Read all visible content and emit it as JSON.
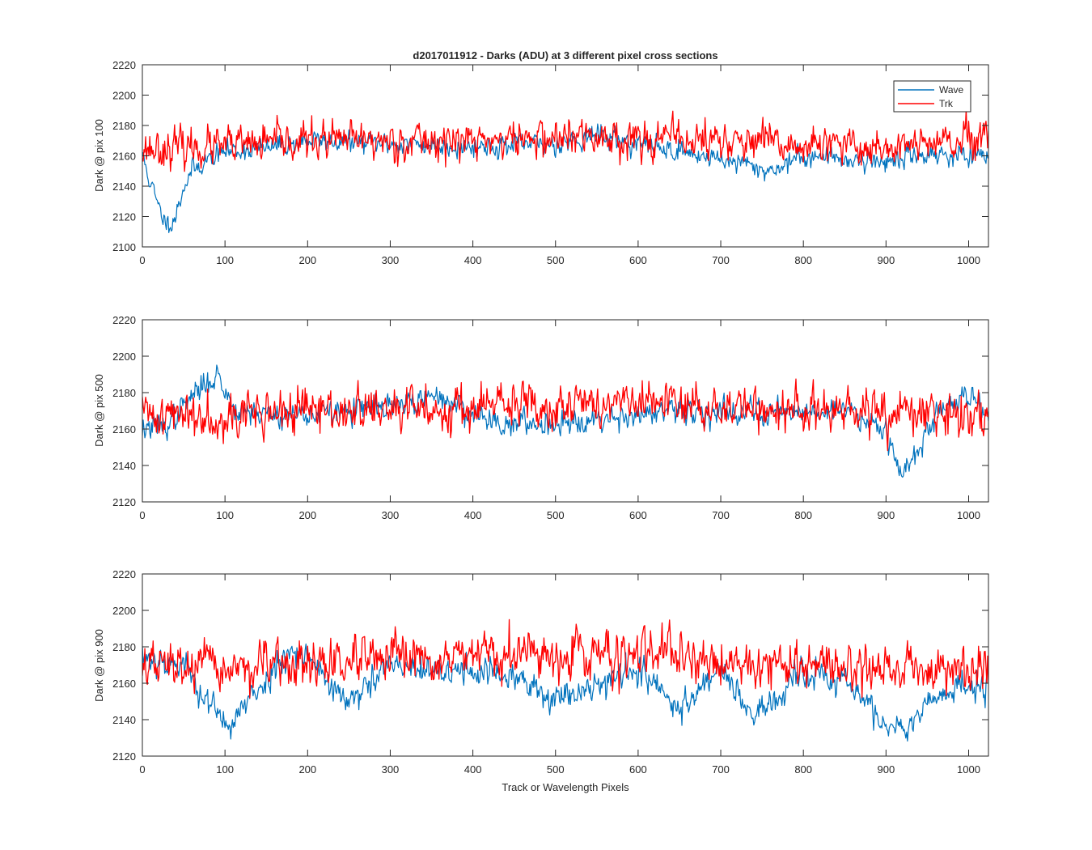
{
  "figure": {
    "title": "d2017011912 - Darks (ADU) at 3 different pixel cross sections",
    "xlabel": "Track or Wavelength Pixels"
  },
  "colors": {
    "wave": "#0072BD",
    "trk": "#FF0000",
    "axes": "#262626"
  },
  "legend": {
    "placement": "top-right of first panel",
    "items": [
      "Wave",
      "Trk"
    ]
  },
  "chart_data": [
    {
      "type": "line",
      "ylabel": "Dark @ pix 100",
      "xlim": [
        0,
        1024
      ],
      "ylim": [
        2100,
        2220
      ],
      "xticks": [
        0,
        100,
        200,
        300,
        400,
        500,
        600,
        700,
        800,
        900,
        1000
      ],
      "yticks": [
        2100,
        2120,
        2140,
        2160,
        2180,
        2200,
        2220
      ],
      "series": [
        {
          "name": "Wave",
          "color": "#0072BD",
          "noise": 5,
          "seed": 11,
          "trend": [
            [
              0,
              2160
            ],
            [
              10,
              2142
            ],
            [
              20,
              2125
            ],
            [
              30,
              2115
            ],
            [
              40,
              2120
            ],
            [
              50,
              2140
            ],
            [
              60,
              2150
            ],
            [
              80,
              2158
            ],
            [
              100,
              2163
            ],
            [
              150,
              2165
            ],
            [
              200,
              2170
            ],
            [
              300,
              2168
            ],
            [
              400,
              2166
            ],
            [
              500,
              2168
            ],
            [
              550,
              2174
            ],
            [
              600,
              2168
            ],
            [
              700,
              2158
            ],
            [
              760,
              2150
            ],
            [
              800,
              2160
            ],
            [
              900,
              2156
            ],
            [
              950,
              2162
            ],
            [
              1024,
              2158
            ]
          ]
        },
        {
          "name": "Trk",
          "color": "#FF0000",
          "noise": 9,
          "seed": 23,
          "trend": [
            [
              0,
              2165
            ],
            [
              100,
              2166
            ],
            [
              200,
              2170
            ],
            [
              300,
              2170
            ],
            [
              400,
              2170
            ],
            [
              500,
              2172
            ],
            [
              600,
              2172
            ],
            [
              700,
              2170
            ],
            [
              800,
              2166
            ],
            [
              900,
              2166
            ],
            [
              1024,
              2170
            ]
          ]
        }
      ]
    },
    {
      "type": "line",
      "ylabel": "Dark @ pix 500",
      "xlim": [
        0,
        1024
      ],
      "ylim": [
        2120,
        2220
      ],
      "xticks": [
        0,
        100,
        200,
        300,
        400,
        500,
        600,
        700,
        800,
        900,
        1000
      ],
      "yticks": [
        2120,
        2140,
        2160,
        2180,
        2200,
        2220
      ],
      "series": [
        {
          "name": "Wave",
          "color": "#0072BD",
          "noise": 5,
          "seed": 37,
          "trend": [
            [
              0,
              2160
            ],
            [
              30,
              2162
            ],
            [
              60,
              2178
            ],
            [
              90,
              2190
            ],
            [
              110,
              2172
            ],
            [
              150,
              2168
            ],
            [
              200,
              2168
            ],
            [
              300,
              2172
            ],
            [
              360,
              2178
            ],
            [
              400,
              2168
            ],
            [
              450,
              2162
            ],
            [
              500,
              2164
            ],
            [
              600,
              2168
            ],
            [
              700,
              2170
            ],
            [
              800,
              2170
            ],
            [
              860,
              2170
            ],
            [
              900,
              2160
            ],
            [
              920,
              2136
            ],
            [
              940,
              2148
            ],
            [
              960,
              2168
            ],
            [
              1000,
              2180
            ],
            [
              1024,
              2170
            ]
          ]
        },
        {
          "name": "Trk",
          "color": "#FF0000",
          "noise": 9,
          "seed": 41,
          "trend": [
            [
              0,
              2168
            ],
            [
              100,
              2168
            ],
            [
              200,
              2170
            ],
            [
              300,
              2170
            ],
            [
              400,
              2172
            ],
            [
              500,
              2174
            ],
            [
              600,
              2174
            ],
            [
              700,
              2172
            ],
            [
              800,
              2170
            ],
            [
              900,
              2168
            ],
            [
              1024,
              2168
            ]
          ]
        }
      ]
    },
    {
      "type": "line",
      "ylabel": "Dark @ pix 900",
      "xlim": [
        0,
        1024
      ],
      "ylim": [
        2120,
        2220
      ],
      "xticks": [
        0,
        100,
        200,
        300,
        400,
        500,
        600,
        700,
        800,
        900,
        1000
      ],
      "yticks": [
        2120,
        2140,
        2160,
        2180,
        2200,
        2220
      ],
      "series": [
        {
          "name": "Wave",
          "color": "#0072BD",
          "noise": 6,
          "seed": 53,
          "trend": [
            [
              0,
              2175
            ],
            [
              50,
              2170
            ],
            [
              80,
              2150
            ],
            [
              100,
              2136
            ],
            [
              130,
              2150
            ],
            [
              180,
              2180
            ],
            [
              200,
              2175
            ],
            [
              250,
              2148
            ],
            [
              300,
              2170
            ],
            [
              350,
              2165
            ],
            [
              400,
              2168
            ],
            [
              450,
              2162
            ],
            [
              500,
              2152
            ],
            [
              550,
              2160
            ],
            [
              600,
              2168
            ],
            [
              650,
              2145
            ],
            [
              700,
              2170
            ],
            [
              740,
              2140
            ],
            [
              800,
              2165
            ],
            [
              850,
              2162
            ],
            [
              910,
              2132
            ],
            [
              950,
              2150
            ],
            [
              1000,
              2158
            ],
            [
              1024,
              2160
            ]
          ]
        },
        {
          "name": "Trk",
          "color": "#FF0000",
          "noise": 9,
          "seed": 67,
          "trend": [
            [
              0,
              2170
            ],
            [
              100,
              2168
            ],
            [
              200,
              2170
            ],
            [
              300,
              2172
            ],
            [
              400,
              2174
            ],
            [
              500,
              2176
            ],
            [
              600,
              2176
            ],
            [
              700,
              2172
            ],
            [
              800,
              2170
            ],
            [
              900,
              2168
            ],
            [
              1024,
              2168
            ]
          ]
        }
      ]
    }
  ]
}
